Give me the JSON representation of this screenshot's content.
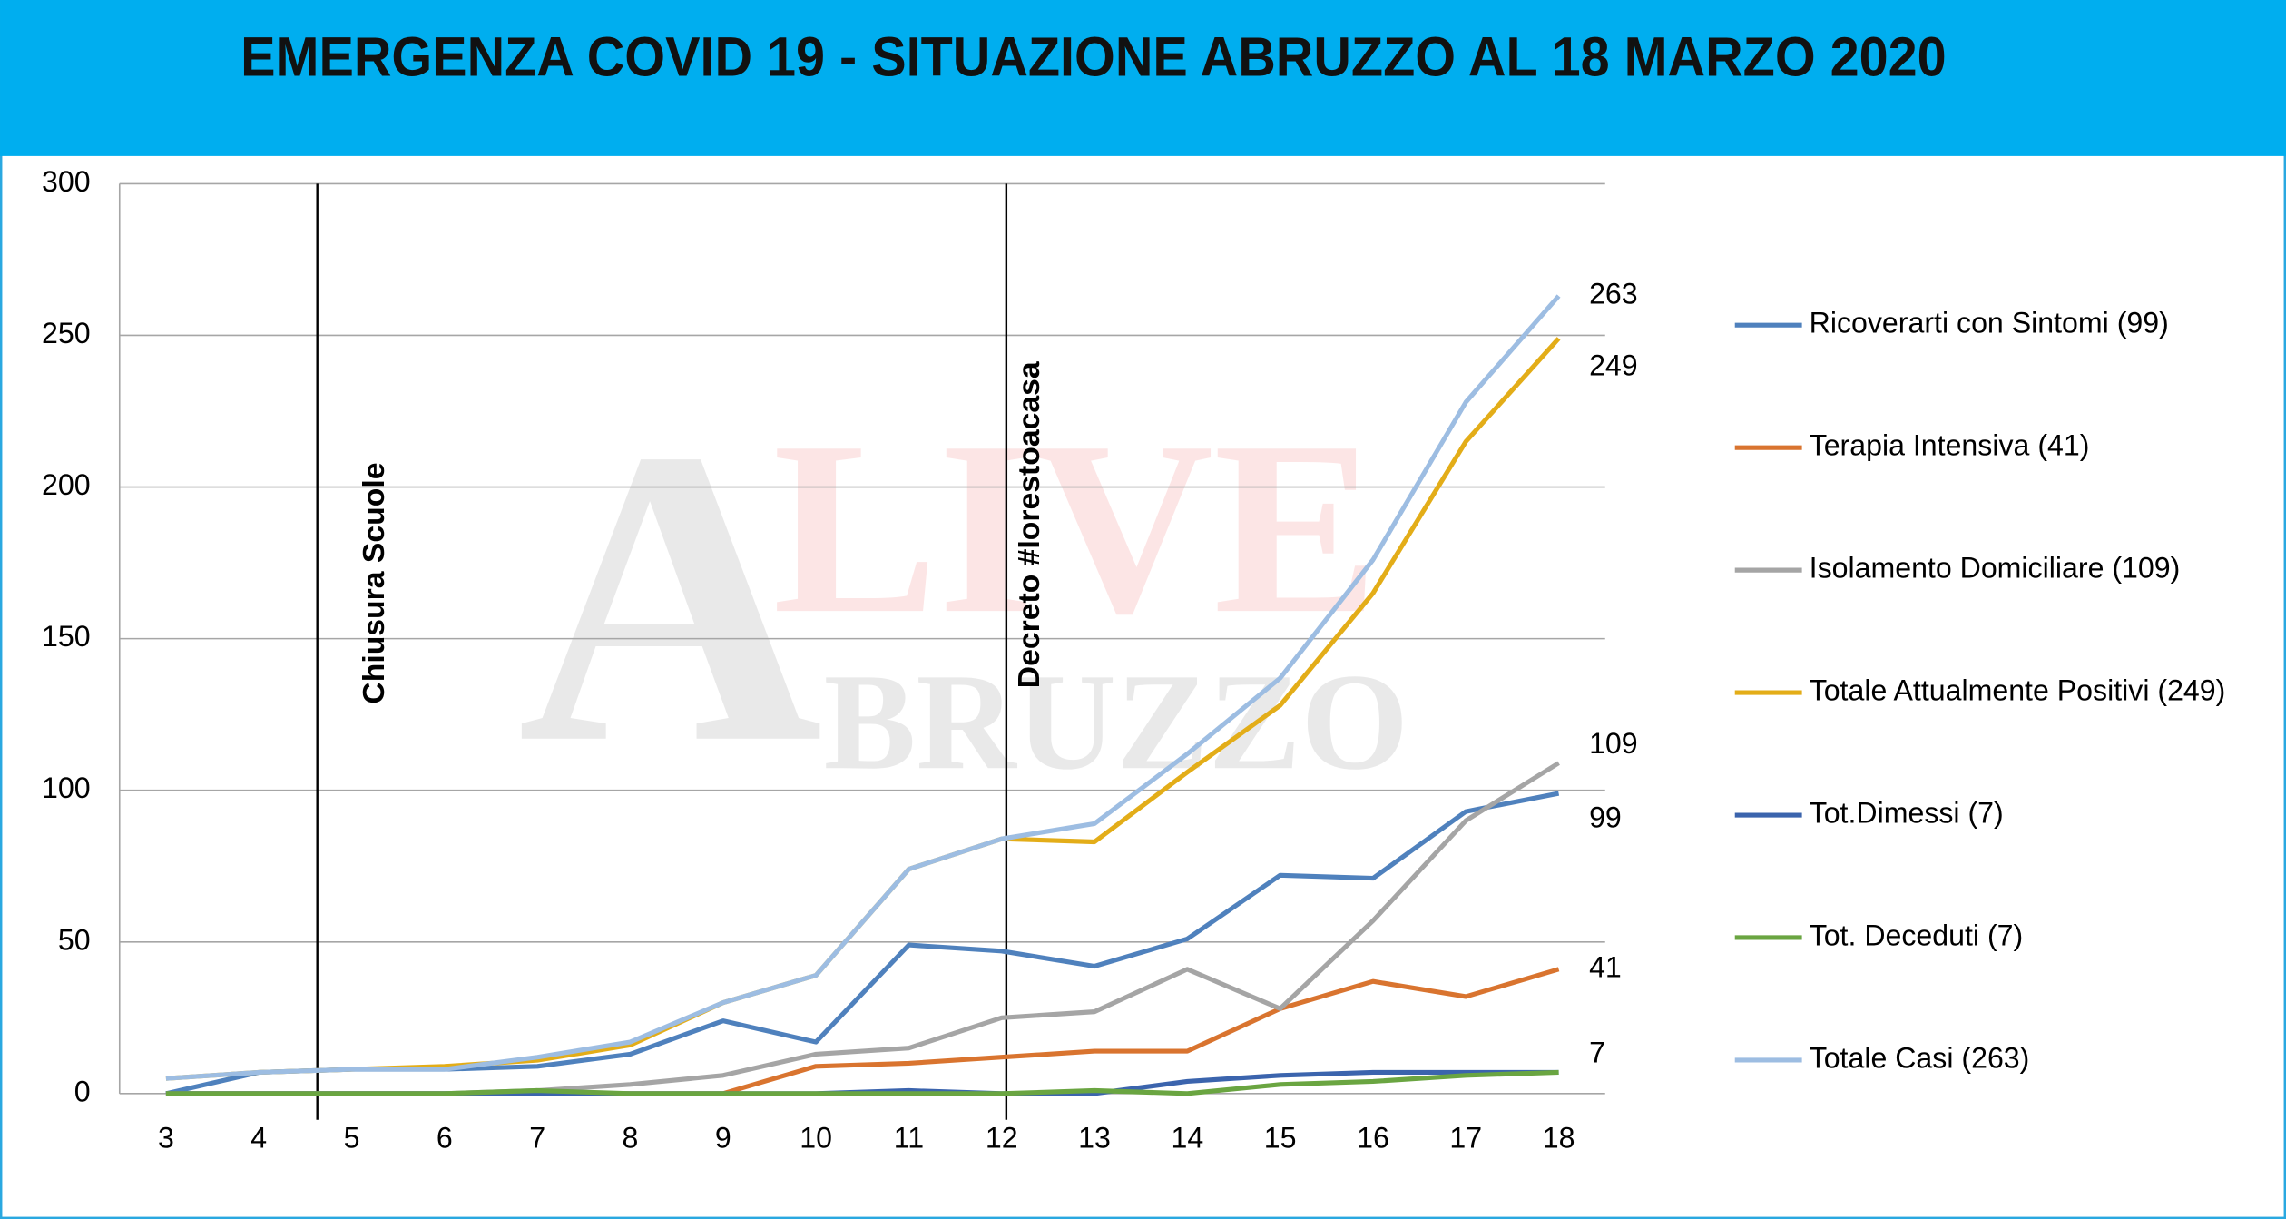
{
  "chart_data": {
    "type": "line",
    "title": "EMERGENZA COVID 19 - SITUAZIONE ABRUZZO AL 18 MARZO 2020",
    "x": [
      3,
      4,
      5,
      6,
      7,
      8,
      9,
      10,
      11,
      12,
      13,
      14,
      15,
      16,
      17,
      18
    ],
    "xlim": [
      2.5,
      18.5
    ],
    "xticks": [
      3,
      4,
      5,
      6,
      7,
      8,
      9,
      10,
      11,
      12,
      13,
      14,
      15,
      16,
      17,
      18
    ],
    "ylim": [
      0,
      300
    ],
    "yticks": [
      0,
      50,
      100,
      150,
      200,
      250,
      300
    ],
    "grid": true,
    "legend": "right",
    "series": [
      {
        "name": "Ricoverarti con Sintomi (99)",
        "color": "#4f81bd",
        "values": [
          0,
          7,
          8,
          8,
          9,
          13,
          24,
          17,
          49,
          47,
          42,
          51,
          72,
          71,
          93,
          99
        ]
      },
      {
        "name": "Terapia Intensiva (41)",
        "color": "#d9742f",
        "values": [
          0,
          0,
          0,
          0,
          0,
          0,
          0,
          9,
          10,
          12,
          14,
          14,
          28,
          37,
          32,
          41
        ]
      },
      {
        "name": "Isolamento Domiciliare (109)",
        "color": "#a5a5a5",
        "values": [
          0,
          0,
          0,
          0,
          1,
          3,
          6,
          13,
          15,
          25,
          27,
          41,
          28,
          57,
          90,
          109
        ]
      },
      {
        "name": "Totale Attualmente Positivi (249)",
        "color": "#e3ad18",
        "values": [
          5,
          7,
          8,
          9,
          11,
          16,
          30,
          39,
          74,
          84,
          83,
          106,
          128,
          165,
          215,
          249
        ]
      },
      {
        "name": "Tot.Dimessi (7)",
        "color": "#3b64ad",
        "values": [
          0,
          0,
          0,
          0,
          0,
          0,
          0,
          0,
          1,
          0,
          0,
          4,
          6,
          7,
          7,
          7
        ]
      },
      {
        "name": "Tot. Deceduti (7)",
        "color": "#6aa541",
        "values": [
          0,
          0,
          0,
          0,
          1,
          0,
          0,
          0,
          0,
          0,
          1,
          0,
          3,
          4,
          6,
          7
        ]
      },
      {
        "name": "Totale Casi (263)",
        "color": "#9dbde2",
        "values": [
          5,
          7,
          8,
          8,
          12,
          17,
          30,
          39,
          74,
          84,
          89,
          112,
          137,
          176,
          228,
          263
        ]
      }
    ],
    "end_labels": [
      263,
      249,
      109,
      99,
      41,
      7
    ],
    "events": [
      {
        "x": 4.63,
        "label": "Chiusura  Scuole"
      },
      {
        "x": 12.05,
        "label": "Decreto  #Iorestoacasa"
      }
    ],
    "watermark": [
      "A",
      "LIVE",
      "BRUZZO"
    ]
  }
}
